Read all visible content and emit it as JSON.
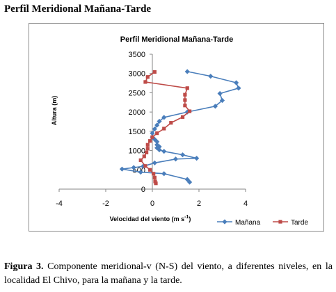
{
  "heading": "Perfil Meridional Mañana-Tarde",
  "caption": {
    "label": "Figura 3.",
    "text": " Componente meridional-v (N-S) del viento, a diferentes niveles, en la localidad El Chivo, para la mañana y la tarde."
  },
  "chart_data": {
    "type": "line",
    "title": "Perfil Meridional Mañana-Tarde",
    "xlabel": "Velocidad del viento (m  s",
    "xlabel_sup": "-1",
    "xlabel_close": ")",
    "ylabel": "Altura  (m)",
    "xlim": [
      -4,
      4
    ],
    "ylim": [
      0,
      3500
    ],
    "x_ticks": [
      -4,
      -2,
      0,
      2,
      4
    ],
    "y_ticks": [
      0,
      500,
      1000,
      1500,
      2000,
      2500,
      3000,
      3500
    ],
    "grid": false,
    "legend_position": "bottom-right",
    "series": [
      {
        "name": "Mañana",
        "color": "#4a7ebb",
        "marker": "diamond",
        "points": [
          [
            1.6,
            180
          ],
          [
            1.5,
            250
          ],
          [
            0.5,
            400
          ],
          [
            -0.5,
            440
          ],
          [
            -1.3,
            520
          ],
          [
            -0.8,
            560
          ],
          [
            -0.4,
            590
          ],
          [
            0.1,
            680
          ],
          [
            1.0,
            780
          ],
          [
            1.9,
            800
          ],
          [
            1.3,
            890
          ],
          [
            0.5,
            980
          ],
          [
            0.3,
            1020
          ],
          [
            0.2,
            1070
          ],
          [
            0.3,
            1100
          ],
          [
            0.2,
            1150
          ],
          [
            0.2,
            1230
          ],
          [
            0.1,
            1290
          ],
          [
            0.0,
            1350
          ],
          [
            0.0,
            1450
          ],
          [
            0.1,
            1560
          ],
          [
            0.2,
            1660
          ],
          [
            0.3,
            1760
          ],
          [
            0.5,
            1860
          ],
          [
            1.5,
            2000
          ],
          [
            2.7,
            2150
          ],
          [
            3.0,
            2300
          ],
          [
            2.9,
            2480
          ],
          [
            3.7,
            2620
          ],
          [
            3.6,
            2760
          ],
          [
            2.5,
            2930
          ],
          [
            1.5,
            3050
          ]
        ]
      },
      {
        "name": "Tarde",
        "color": "#be4b48",
        "marker": "square",
        "points": [
          [
            0.15,
            150
          ],
          [
            0.12,
            200
          ],
          [
            0.1,
            300
          ],
          [
            0.05,
            400
          ],
          [
            -0.1,
            500
          ],
          [
            -0.3,
            600
          ],
          [
            -0.5,
            750
          ],
          [
            -0.35,
            850
          ],
          [
            -0.25,
            950
          ],
          [
            -0.2,
            1050
          ],
          [
            -0.2,
            1150
          ],
          [
            -0.1,
            1250
          ],
          [
            0.0,
            1350
          ],
          [
            0.2,
            1450
          ],
          [
            0.5,
            1570
          ],
          [
            0.8,
            1720
          ],
          [
            1.3,
            1870
          ],
          [
            1.6,
            2020
          ],
          [
            1.4,
            2170
          ],
          [
            1.4,
            2310
          ],
          [
            1.4,
            2450
          ],
          [
            1.5,
            2620
          ],
          [
            -0.3,
            2780
          ],
          [
            -0.2,
            2910
          ],
          [
            0.1,
            3040
          ]
        ]
      }
    ]
  }
}
